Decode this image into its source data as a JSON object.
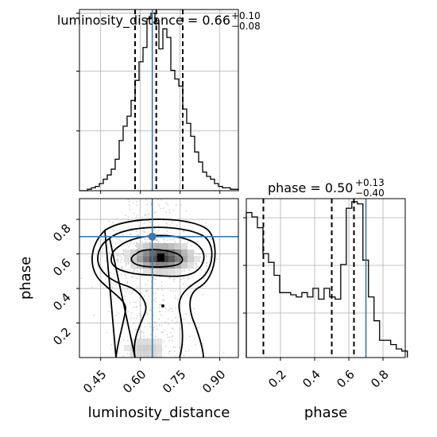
{
  "chart_data": {
    "type": "corner",
    "parameters": [
      "luminosity_distance",
      "phase"
    ],
    "truths": {
      "luminosity_distance": 0.645,
      "phase": 0.7
    },
    "marginals": [
      {
        "parameter": "luminosity_distance",
        "title_prefix": "luminosity_distance = 0.66",
        "title_plus": "+0.10",
        "title_minus": "−0.08",
        "median": 0.66,
        "plus": 0.1,
        "minus": 0.08,
        "quantiles": [
          0.58,
          0.66,
          0.76
        ],
        "bin_edges": [
          0.37,
          0.385,
          0.4,
          0.415,
          0.43,
          0.445,
          0.46,
          0.475,
          0.49,
          0.505,
          0.52,
          0.535,
          0.55,
          0.565,
          0.58,
          0.595,
          0.61,
          0.625,
          0.64,
          0.655,
          0.67,
          0.685,
          0.7,
          0.715,
          0.73,
          0.745,
          0.76,
          0.775,
          0.79,
          0.805,
          0.82,
          0.835,
          0.85,
          0.865,
          0.88,
          0.895,
          0.91,
          0.925,
          0.94,
          0.955,
          0.97
        ],
        "counts": [
          0,
          0,
          1,
          2,
          3,
          5,
          8,
          11,
          15,
          22,
          35,
          45,
          52,
          63,
          77,
          90,
          100,
          120,
          124,
          117,
          99,
          113,
          107,
          84,
          78,
          73,
          57,
          47,
          38,
          27,
          20,
          13,
          10,
          8,
          5,
          3,
          2,
          2,
          1,
          1
        ],
        "xlim": [
          0.37,
          0.97
        ]
      },
      {
        "parameter": "phase",
        "title_prefix": "phase = 0.50",
        "title_plus": "+0.13",
        "title_minus": "−0.40",
        "median": 0.5,
        "plus": 0.13,
        "minus": 0.4,
        "quantiles": [
          0.1,
          0.5,
          0.63
        ],
        "bin_edges": [
          0.0,
          0.0325,
          0.065,
          0.0975,
          0.13,
          0.1625,
          0.195,
          0.2275,
          0.26,
          0.2925,
          0.325,
          0.3575,
          0.39,
          0.4225,
          0.455,
          0.4875,
          0.52,
          0.5525,
          0.585,
          0.6175,
          0.65,
          0.6825,
          0.715,
          0.7475,
          0.78,
          0.8125,
          0.845,
          0.8775,
          0.91,
          0.9425
        ],
        "counts": [
          67,
          65,
          60,
          48,
          44,
          38,
          30,
          30,
          29,
          28,
          30,
          28,
          32,
          27,
          32,
          28,
          27,
          43,
          69,
          72,
          71,
          45,
          28,
          17,
          8,
          8,
          6,
          4,
          3
        ],
        "xlim": [
          0.0,
          0.93
        ]
      }
    ],
    "joint": {
      "x": "luminosity_distance",
      "y": "phase",
      "xlim": [
        0.37,
        0.97
      ],
      "ylim": [
        0.0,
        0.92
      ],
      "peak": {
        "x": 0.68,
        "y": 0.58
      },
      "contour_levels": [
        "0.5σ",
        "1σ",
        "1.5σ",
        "2σ"
      ]
    },
    "axes": {
      "xlabel_joint": "luminosity_distance",
      "xlabel_phase": "phase",
      "ylabel_joint": "phase",
      "dist_ticks": [
        0.45,
        0.6,
        0.75,
        0.9
      ],
      "dist_tick_labels": [
        "0.45",
        "0.60",
        "0.75",
        "0.90"
      ],
      "phase_ticks": [
        0.2,
        0.4,
        0.6,
        0.8
      ],
      "phase_tick_labels": [
        "0.2",
        "0.4",
        "0.6",
        "0.8"
      ]
    },
    "grid": true,
    "colors": {
      "truth": "#3a7ab0",
      "hist": "#000000",
      "density": "#000000"
    }
  }
}
